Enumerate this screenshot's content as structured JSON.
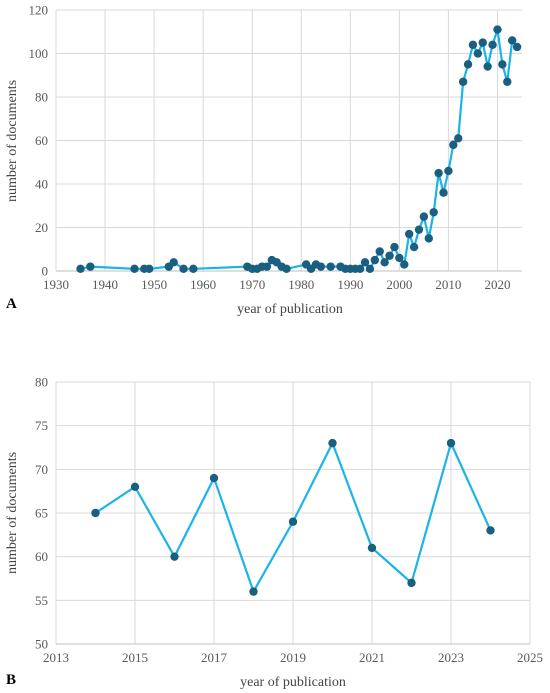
{
  "colors": {
    "line": "#1cb4e8",
    "marker": "#1a5e80",
    "grid": "#d9d9d9"
  },
  "chart_data": [
    {
      "panel": "A",
      "type": "line",
      "xlabel": "year of publication",
      "ylabel": "number of documents",
      "xlim": [
        1930,
        2025
      ],
      "ylim": [
        0,
        120
      ],
      "xticks": [
        "1930",
        "1940",
        "1950",
        "1960",
        "1970",
        "1980",
        "1990",
        "2000",
        "2010",
        "2020"
      ],
      "yticks": [
        "0",
        "20",
        "40",
        "60",
        "80",
        "100",
        "120"
      ],
      "grid": true,
      "markers": true,
      "x": [
        1935,
        1937,
        1946,
        1948,
        1949,
        1953,
        1954,
        1956,
        1958,
        1969,
        1970,
        1971,
        1972,
        1973,
        1974,
        1975,
        1976,
        1977,
        1981,
        1982,
        1983,
        1984,
        1986,
        1988,
        1989,
        1990,
        1991,
        1992,
        1993,
        1994,
        1995,
        1996,
        1997,
        1998,
        1999,
        2000,
        2001,
        2002,
        2003,
        2004,
        2005,
        2006,
        2007,
        2008,
        2009,
        2010,
        2011,
        2012,
        2013,
        2014,
        2015,
        2016,
        2017,
        2018,
        2019,
        2020,
        2021,
        2022,
        2023,
        2024
      ],
      "y": [
        1,
        2,
        1,
        1,
        1,
        2,
        4,
        1,
        1,
        2,
        1,
        1,
        2,
        2,
        5,
        4,
        2,
        1,
        3,
        1,
        3,
        2,
        2,
        2,
        1,
        1,
        1,
        1,
        4,
        1,
        5,
        9,
        4,
        7,
        11,
        6,
        3,
        17,
        11,
        19,
        25,
        15,
        27,
        45,
        36,
        46,
        58,
        61,
        87,
        95,
        104,
        100,
        105,
        94,
        104,
        111,
        95,
        87,
        106,
        103
      ]
    },
    {
      "panel": "B",
      "type": "line",
      "xlabel": "year of publication",
      "ylabel": "number of documents",
      "xlim": [
        2013,
        2025
      ],
      "ylim": [
        50,
        80
      ],
      "xticks": [
        "2013",
        "2015",
        "2017",
        "2019",
        "2021",
        "2023",
        "2025"
      ],
      "yticks": [
        "50",
        "55",
        "60",
        "65",
        "70",
        "75",
        "80"
      ],
      "grid": true,
      "markers": true,
      "x": [
        2014,
        2015,
        2016,
        2017,
        2018,
        2019,
        2020,
        2021,
        2022,
        2023,
        2024
      ],
      "y": [
        65,
        68,
        60,
        69,
        56,
        64,
        73,
        61,
        57,
        73,
        63
      ]
    }
  ]
}
